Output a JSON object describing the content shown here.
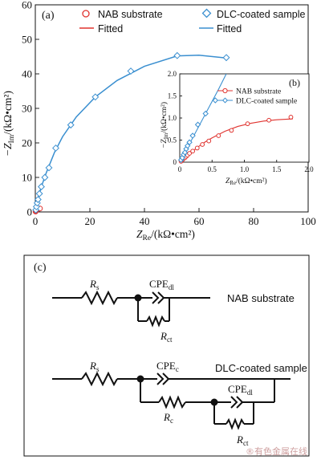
{
  "chart_data": [
    {
      "type": "scatter",
      "panel_label": "(a)",
      "xlabel_main": "Z",
      "xlabel_sub": "Re",
      "xlabel_unit": "/(kΩ•cm²)",
      "ylabel_prefix": "−Z",
      "ylabel_sub": "Im",
      "ylabel_unit": "/(kΩ•cm²)",
      "xlim": [
        0,
        100
      ],
      "ylim": [
        0,
        60
      ],
      "xticks": [
        0,
        20,
        40,
        60,
        80,
        100
      ],
      "yticks": [
        0,
        10,
        20,
        30,
        40,
        50,
        60
      ],
      "legend": {
        "placement": "top",
        "entries": [
          {
            "label": "NAB substrate",
            "kind": "circle-marker",
            "color": "#e0332f"
          },
          {
            "label": "Fitted",
            "kind": "line",
            "color": "#e0332f"
          },
          {
            "label": "DLC-coated sample",
            "kind": "diamond-marker",
            "color": "#3a8fd0"
          },
          {
            "label": "Fitted",
            "kind": "line",
            "color": "#3a8fd0"
          }
        ]
      },
      "series": [
        {
          "name": "NAB substrate",
          "color": "#e0332f",
          "marker": "circle",
          "x": [
            0.1,
            0.2,
            0.35,
            0.5,
            0.7,
            0.9,
            1.1,
            1.4,
            1.7
          ],
          "y": [
            0.1,
            0.3,
            0.5,
            0.65,
            0.75,
            0.85,
            0.9,
            0.95,
            1.0
          ],
          "fit_x": [
            0,
            0.3,
            0.7,
            1.1,
            1.5,
            1.8
          ],
          "fit_y": [
            0,
            0.35,
            0.7,
            0.88,
            0.95,
            0.98
          ]
        },
        {
          "name": "DLC-coated sample",
          "color": "#3a8fd0",
          "marker": "diamond",
          "x": [
            0.2,
            0.4,
            0.7,
            1.0,
            1.5,
            2.2,
            3.5,
            5.0,
            7.5,
            13,
            22,
            35,
            52,
            70
          ],
          "y": [
            0.6,
            1.5,
            2.6,
            3.6,
            5.3,
            7.3,
            10.0,
            12.8,
            18.5,
            25.2,
            33.3,
            40.8,
            45.3,
            44.7
          ],
          "fit_x": [
            0,
            2,
            4,
            7,
            10,
            15,
            22,
            30,
            40,
            52,
            60,
            70
          ],
          "fit_y": [
            0,
            6.8,
            11.3,
            17.2,
            21.8,
            27.5,
            33.3,
            38.1,
            42.2,
            45.2,
            45.4,
            44.6
          ]
        }
      ]
    },
    {
      "type": "scatter",
      "panel_label": "(b)",
      "xlabel_main": "Z",
      "xlabel_sub": "Re",
      "xlabel_unit": "/(kΩ•cm²)",
      "ylabel_prefix": "−Z",
      "ylabel_sub": "Im",
      "ylabel_unit": "/(kΩ•cm²)",
      "xlim": [
        0,
        2.0
      ],
      "ylim": [
        0,
        2.0
      ],
      "xticks": [
        0,
        0.5,
        1.0,
        1.5,
        2.0
      ],
      "xtick_labels": [
        "0",
        "0.5",
        "1.0",
        "1.5",
        "2.0"
      ],
      "yticks": [
        0,
        0.5,
        1.0,
        1.5,
        2.0
      ],
      "ytick_labels": [
        "0",
        "0.5",
        "1.0",
        "1.5",
        "2.0"
      ],
      "legend": {
        "placement": "top-right",
        "entries": [
          {
            "label": "NAB substrate",
            "kind": "circle-line",
            "color": "#e0332f"
          },
          {
            "label": "DLC-coated sample",
            "kind": "diamond-line",
            "color": "#3a8fd0"
          }
        ]
      },
      "series": [
        {
          "name": "NAB substrate",
          "color": "#e0332f",
          "marker": "circle",
          "x": [
            0.02,
            0.04,
            0.06,
            0.08,
            0.1,
            0.12,
            0.15,
            0.2,
            0.27,
            0.35,
            0.45,
            0.6,
            0.8,
            1.05,
            1.38,
            1.72
          ],
          "y": [
            0.02,
            0.05,
            0.08,
            0.1,
            0.13,
            0.16,
            0.2,
            0.25,
            0.32,
            0.4,
            0.48,
            0.6,
            0.72,
            0.87,
            0.95,
            1.02
          ],
          "fit_x": [
            0,
            0.1,
            0.2,
            0.35,
            0.5,
            0.7,
            0.9,
            1.1,
            1.3,
            1.5,
            1.75
          ],
          "fit_y": [
            0,
            0.13,
            0.25,
            0.42,
            0.55,
            0.7,
            0.81,
            0.88,
            0.93,
            0.96,
            0.98
          ]
        },
        {
          "name": "DLC-coated sample",
          "color": "#3a8fd0",
          "marker": "diamond",
          "x": [
            0.02,
            0.04,
            0.06,
            0.08,
            0.1,
            0.12,
            0.15,
            0.2,
            0.28,
            0.4,
            0.55
          ],
          "y": [
            0.05,
            0.1,
            0.17,
            0.22,
            0.3,
            0.37,
            0.45,
            0.6,
            0.85,
            1.1,
            1.4
          ],
          "fit_x": [
            0,
            0.6,
            0.72
          ],
          "fit_y": [
            0,
            1.65,
            2.0
          ]
        }
      ]
    }
  ],
  "circuits": {
    "panel_label": "(c)",
    "nab": {
      "title": "NAB substrate",
      "rs_main": "R",
      "rs_sub": "s",
      "cpe_main": "CPE",
      "cpe_sub": "dl",
      "rct_main": "R",
      "rct_sub": "ct"
    },
    "dlc": {
      "title": "DLC-coated sample",
      "rs_main": "R",
      "rs_sub": "s",
      "cpec_main": "CPE",
      "cpec_sub": "c",
      "rc_main": "R",
      "rc_sub": "c",
      "cpedl_main": "CPE",
      "cpedl_sub": "dl",
      "rct_main": "R",
      "rct_sub": "ct"
    }
  },
  "watermark": "®有色金属在线"
}
